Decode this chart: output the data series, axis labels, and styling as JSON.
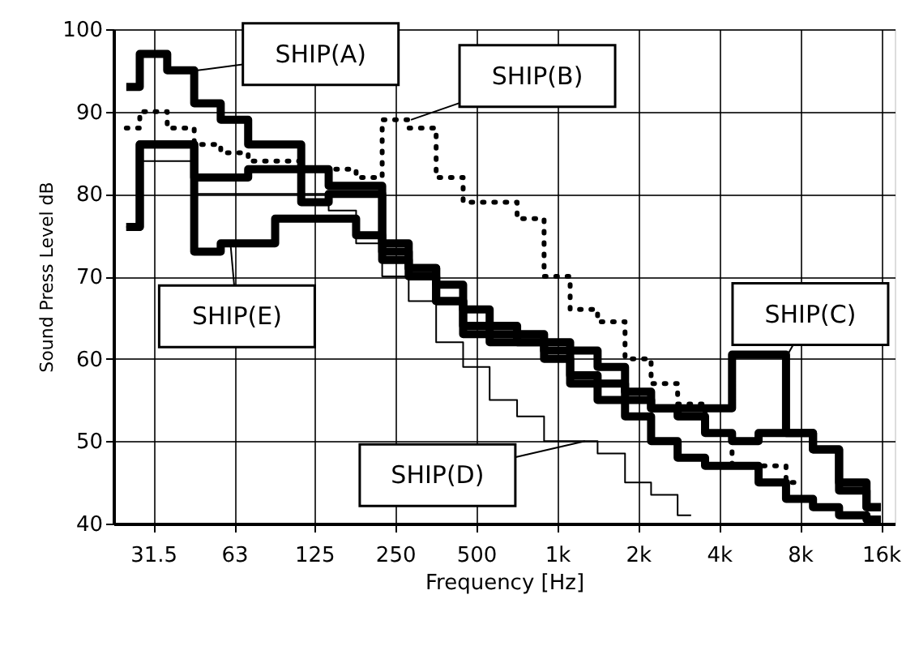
{
  "chart_data": {
    "type": "step",
    "xlabel": "Frequency [Hz]",
    "ylabel": "Sound Press Level dB",
    "x": [
      25,
      31.5,
      40,
      50,
      63,
      80,
      100,
      125,
      160,
      200,
      250,
      315,
      400,
      500,
      630,
      800,
      1000,
      1250,
      1600,
      2000,
      2500,
      3150,
      4000,
      5000,
      6300,
      8000,
      10000,
      12500,
      16000
    ],
    "series": [
      {
        "color": "#000000",
        "line_style": "solid",
        "values": [
          93,
          97,
          95,
          91,
          89,
          86,
          86,
          83,
          81,
          81,
          74,
          71,
          69,
          66,
          64,
          63,
          62,
          61,
          59,
          56,
          54,
          53,
          51,
          50,
          51,
          51,
          49,
          45,
          42
        ]
      },
      {
        "color": "#000000",
        "line_style": "dotted",
        "values": [
          88,
          90,
          88,
          86,
          85,
          84,
          84,
          83,
          83,
          82,
          89,
          88,
          82,
          79,
          79,
          77,
          70,
          66,
          64.5,
          60,
          57,
          54.5,
          51,
          47,
          47,
          45,
          null,
          null,
          null
        ]
      },
      {
        "color": "#000000",
        "line_style": "solid",
        "values": [
          76,
          86,
          86,
          82,
          82,
          83,
          83,
          79,
          80,
          80,
          73,
          71,
          67,
          63,
          62,
          62,
          61,
          58,
          57,
          55,
          54,
          54,
          54,
          60.5,
          60.5,
          51,
          49,
          44,
          42
        ]
      },
      {
        "color": "#000000",
        "line_style": "solid",
        "values": [
          76,
          84,
          84,
          80,
          80,
          80,
          80,
          80,
          78,
          74,
          70,
          67,
          62,
          59,
          55,
          53,
          50,
          50,
          48.5,
          45,
          43.5,
          41,
          null,
          null,
          null,
          null,
          null,
          null,
          null
        ]
      },
      {
        "color": "#000000",
        "line_style": "solid",
        "values": [
          76,
          86,
          86,
          73,
          74,
          74,
          77,
          77,
          77,
          75,
          72,
          70,
          67,
          64,
          63,
          62,
          60,
          57,
          55,
          53,
          50,
          48,
          47,
          47,
          45,
          43,
          42,
          41,
          40.5
        ]
      }
    ],
    "annotations": [
      {
        "text": "SHIP(A)",
        "x": 46,
        "y": 95
      },
      {
        "text": "SHIP(B)",
        "x": 286,
        "y": 89
      },
      {
        "text": "SHIP(C)",
        "x": 7200,
        "y": 60.5
      },
      {
        "text": "SHIP(E)",
        "x": 61,
        "y": 74
      },
      {
        "text": "SHIP(D)",
        "x": 1270,
        "y": 50
      }
    ],
    "xlim": [
      22.4,
      18000
    ],
    "ylim": [
      40,
      100
    ],
    "log": "x",
    "xticks": [
      31.5,
      63,
      125,
      250,
      500,
      {
        "value": 1000,
        "label": "1k"
      },
      {
        "value": 2000,
        "label": "2k"
      },
      {
        "value": 4000,
        "label": "4k"
      },
      {
        "value": 8000,
        "label": "8k"
      },
      {
        "value": 16000,
        "label": "16k"
      }
    ],
    "yticks": [
      40,
      50,
      60,
      70,
      80,
      90,
      100
    ],
    "grid": true
  }
}
